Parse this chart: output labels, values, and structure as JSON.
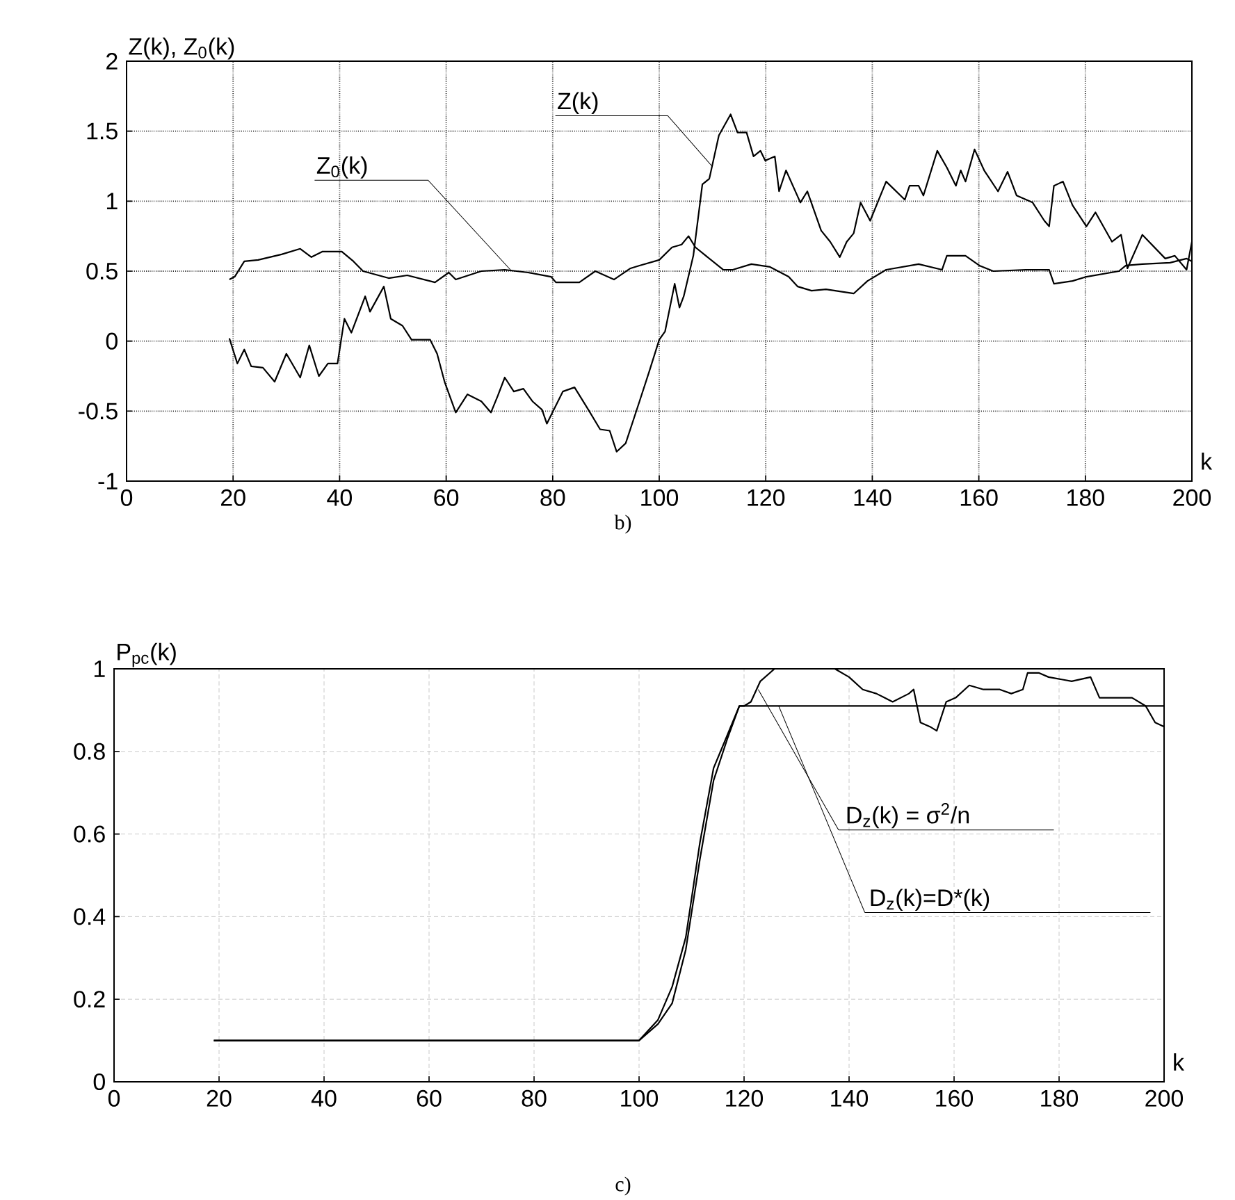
{
  "chart_data": [
    {
      "type": "line",
      "ylabel": "Z(k), Z$_{0}$(k)",
      "xlabel": "k",
      "annotations": [
        "b)",
        {
          "text": "Z(k)",
          "x": 109.9,
          "y": 1.25
        },
        {
          "text": "Z$_{0}$(k)",
          "x": 72.3,
          "y": 0.5
        }
      ],
      "xlim": [
        0,
        200
      ],
      "ylim": [
        -1,
        2
      ],
      "xticks": [
        0,
        20,
        40,
        60,
        80,
        100,
        120,
        140,
        160,
        180,
        200
      ],
      "yticks": [
        {
          "value": -1,
          "label": "-1"
        },
        {
          "value": -0.5,
          "label": "-0.5"
        },
        0,
        0.5,
        1,
        1.5,
        2
      ],
      "grid": true,
      "legend": false,
      "marker": "none",
      "line_style": "solid",
      "series": [
        {
          "color": "#000000",
          "x": [
            19.3,
            20.8,
            22.1,
            23.4,
            25.6,
            27.8,
            30,
            32.6,
            34.3,
            36.1,
            37.8,
            39.6,
            40.9,
            42.2,
            44.8,
            45.7,
            48.3,
            49.6,
            51.8,
            53.5,
            57,
            58.3,
            59.7,
            61.8,
            64,
            66.6,
            68.4,
            69.7,
            71,
            72.7,
            74.5,
            76.2,
            78,
            78.9,
            80.6,
            81.9,
            84.1,
            86.7,
            88.9,
            90.7,
            92,
            93.7,
            96.3,
            98.1,
            100,
            101.1,
            102.9,
            103.8,
            104.6,
            106.4,
            108.1,
            109.4,
            111.2,
            113.4,
            114.7,
            116.4,
            117.7,
            119,
            119.9,
            121.7,
            122.5,
            123.8,
            126.5,
            127.8,
            130.4,
            132.1,
            133.9,
            135.2,
            136.5,
            137.8,
            139.6,
            142.6,
            146.1,
            147,
            148.7,
            149.6,
            152.2,
            154,
            155.7,
            156.6,
            157.5,
            159.2,
            161,
            163.6,
            165.4,
            167.1,
            170.1,
            172.3,
            173.2,
            174.1,
            175.8,
            177.6,
            180.2,
            181.9,
            185,
            186.7,
            187.9,
            190.7,
            195,
            196.8,
            199,
            200
          ],
          "values": [
            0.02,
            -0.16,
            -0.06,
            -0.18,
            -0.19,
            -0.29,
            -0.09,
            -0.26,
            -0.03,
            -0.25,
            -0.16,
            -0.16,
            0.16,
            0.06,
            0.32,
            0.21,
            0.39,
            0.16,
            0.11,
            0.01,
            0.01,
            -0.09,
            -0.29,
            -0.51,
            -0.38,
            -0.43,
            -0.51,
            -0.39,
            -0.26,
            -0.36,
            -0.34,
            -0.43,
            -0.49,
            -0.59,
            -0.46,
            -0.36,
            -0.33,
            -0.49,
            -0.63,
            -0.64,
            -0.79,
            -0.73,
            -0.43,
            -0.22,
            0.01,
            0.07,
            0.41,
            0.24,
            0.32,
            0.61,
            1.12,
            1.16,
            1.47,
            1.62,
            1.49,
            1.49,
            1.32,
            1.36,
            1.29,
            1.32,
            1.07,
            1.22,
            0.99,
            1.07,
            0.79,
            0.71,
            0.6,
            0.71,
            0.77,
            0.99,
            0.86,
            1.14,
            1.01,
            1.11,
            1.11,
            1.04,
            1.36,
            1.24,
            1.11,
            1.22,
            1.14,
            1.37,
            1.22,
            1.07,
            1.21,
            1.04,
            0.99,
            0.86,
            0.82,
            1.11,
            1.14,
            0.97,
            0.82,
            0.92,
            0.71,
            0.76,
            0.52,
            0.76,
            0.59,
            0.61,
            0.51,
            0.71
          ]
        },
        {
          "color": "#000000",
          "x": [
            19.3,
            20.3,
            22.1,
            24.7,
            29.1,
            32.6,
            34.7,
            36.8,
            40.4,
            42.6,
            44.4,
            49.2,
            52.7,
            57.9,
            60.5,
            61.8,
            66.6,
            71,
            75.4,
            79.7,
            80.6,
            85,
            88,
            91.5,
            94.6,
            96.3,
            100,
            102.4,
            104.2,
            105.5,
            106.8,
            109.4,
            112,
            113.8,
            117.3,
            120.8,
            124.3,
            126,
            128.6,
            131.3,
            136.5,
            139.1,
            142.6,
            148.7,
            153.1,
            154,
            157.5,
            160.1,
            162.7,
            168.8,
            173.2,
            174.1,
            177.6,
            180.2,
            186.3,
            187.6,
            190.7,
            195.9,
            199,
            200
          ],
          "values": [
            0.44,
            0.46,
            0.57,
            0.58,
            0.62,
            0.66,
            0.6,
            0.64,
            0.64,
            0.57,
            0.5,
            0.45,
            0.47,
            0.42,
            0.49,
            0.44,
            0.5,
            0.51,
            0.49,
            0.46,
            0.42,
            0.42,
            0.5,
            0.44,
            0.52,
            0.54,
            0.58,
            0.67,
            0.69,
            0.75,
            0.67,
            0.59,
            0.51,
            0.51,
            0.55,
            0.53,
            0.46,
            0.39,
            0.36,
            0.37,
            0.34,
            0.43,
            0.51,
            0.55,
            0.51,
            0.61,
            0.61,
            0.54,
            0.5,
            0.51,
            0.51,
            0.41,
            0.43,
            0.46,
            0.5,
            0.54,
            0.55,
            0.56,
            0.59,
            0.57
          ]
        }
      ]
    },
    {
      "type": "line",
      "ylabel": "P$_{pc}$(k)",
      "xlabel": "k",
      "annotations": [
        "c)",
        {
          "text": "D$_{z}$(k) = σ$^{2}$/n",
          "x": 122.7,
          "y": 0.95
        },
        {
          "text": "D$_{z}$(k)=D*(k)",
          "x": 126.6,
          "y": 0.91
        }
      ],
      "xlim": [
        0,
        200
      ],
      "ylim": [
        0,
        1
      ],
      "xticks": [
        0,
        20,
        40,
        60,
        80,
        100,
        120,
        140,
        160,
        180,
        200
      ],
      "yticks": [
        0,
        0.2,
        0.4,
        0.6,
        0.8,
        1
      ],
      "grid": true,
      "legend": false,
      "marker": "none",
      "line_style": "solid",
      "series": [
        {
          "color": "#000000",
          "x": [
            19,
            100,
            103.6,
            106.3,
            108.9,
            111.6,
            114.2,
            116.8,
            119.1,
            120,
            121.3,
            123.1,
            125.8,
            137.3,
            140,
            142.6,
            145.2,
            148.3,
            151.4,
            152.3,
            153.6,
            155.4,
            156.7,
            158.5,
            160.3,
            162.9,
            165.6,
            168.7,
            170.9,
            173.1,
            174,
            176.2,
            178,
            182.4,
            186,
            187.7,
            190.4,
            193.9,
            196.5,
            198.3,
            200
          ],
          "values": [
            0.1,
            0.1,
            0.14,
            0.19,
            0.32,
            0.54,
            0.73,
            0.83,
            0.91,
            0.91,
            0.92,
            0.97,
            1.0,
            1.0,
            0.98,
            0.95,
            0.94,
            0.92,
            0.94,
            0.95,
            0.87,
            0.86,
            0.85,
            0.92,
            0.93,
            0.96,
            0.95,
            0.95,
            0.94,
            0.95,
            0.99,
            0.99,
            0.98,
            0.97,
            0.98,
            0.93,
            0.93,
            0.93,
            0.91,
            0.87,
            0.86
          ]
        },
        {
          "color": "#000000",
          "x": [
            19,
            100,
            103.6,
            106.3,
            108.9,
            111.6,
            114.2,
            116.5,
            119.1,
            200
          ],
          "values": [
            0.1,
            0.1,
            0.15,
            0.23,
            0.35,
            0.58,
            0.76,
            0.83,
            0.91,
            0.91
          ]
        }
      ]
    }
  ]
}
